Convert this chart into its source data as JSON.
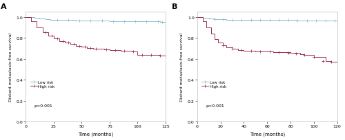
{
  "panel_A": {
    "label": "A",
    "low_risk": {
      "times": [
        0,
        8,
        12,
        18,
        22,
        28,
        35,
        45,
        55,
        65,
        75,
        85,
        95,
        105,
        115,
        120,
        125
      ],
      "surv": [
        1.0,
        0.99,
        0.985,
        0.978,
        0.974,
        0.972,
        0.97,
        0.968,
        0.966,
        0.964,
        0.962,
        0.96,
        0.959,
        0.958,
        0.957,
        0.956,
        0.955
      ],
      "color": "#8bbccc",
      "censor_times": [
        28,
        38,
        48,
        58,
        68,
        78,
        88,
        98,
        108,
        118,
        122
      ],
      "censor_surv": [
        0.972,
        0.97,
        0.968,
        0.966,
        0.964,
        0.962,
        0.96,
        0.959,
        0.958,
        0.957,
        0.956
      ]
    },
    "high_risk": {
      "times": [
        0,
        5,
        10,
        15,
        20,
        25,
        30,
        35,
        40,
        45,
        50,
        55,
        60,
        65,
        70,
        75,
        80,
        85,
        90,
        95,
        100,
        105,
        110,
        115,
        120,
        125
      ],
      "surv": [
        1.0,
        0.96,
        0.9,
        0.855,
        0.82,
        0.795,
        0.77,
        0.755,
        0.74,
        0.725,
        0.715,
        0.705,
        0.7,
        0.695,
        0.69,
        0.685,
        0.682,
        0.678,
        0.675,
        0.672,
        0.64,
        0.638,
        0.636,
        0.635,
        0.634,
        0.633
      ],
      "color": "#9b3050",
      "censor_times": [
        18,
        23,
        28,
        33,
        38,
        43,
        48,
        53,
        58,
        63,
        72,
        80,
        88,
        96,
        104,
        112,
        120
      ],
      "censor_surv": [
        0.855,
        0.82,
        0.795,
        0.77,
        0.755,
        0.74,
        0.725,
        0.715,
        0.705,
        0.7,
        0.688,
        0.682,
        0.676,
        0.672,
        0.638,
        0.635,
        0.634
      ]
    },
    "xlabel": "Time (months)",
    "ylabel": "Distant metastasis-free survival",
    "xlim": [
      0,
      125
    ],
    "ylim": [
      0.0,
      1.05
    ],
    "xticks": [
      0,
      25,
      50,
      75,
      100,
      125
    ],
    "yticks": [
      0.0,
      0.2,
      0.4,
      0.6,
      0.8,
      1.0
    ],
    "pvalue": "p<0.001"
  },
  "panel_B": {
    "label": "B",
    "low_risk": {
      "times": [
        0,
        5,
        10,
        15,
        20,
        25,
        30,
        35,
        40,
        45,
        55,
        65,
        75,
        85,
        95,
        105,
        115,
        120
      ],
      "surv": [
        1.0,
        0.99,
        0.985,
        0.982,
        0.978,
        0.975,
        0.974,
        0.973,
        0.972,
        0.972,
        0.971,
        0.97,
        0.97,
        0.969,
        0.969,
        0.968,
        0.967,
        0.967
      ],
      "color": "#8bbccc",
      "censor_times": [
        15,
        22,
        30,
        38,
        46,
        54,
        62,
        70,
        78,
        86,
        94,
        102,
        110,
        118
      ],
      "censor_surv": [
        0.982,
        0.978,
        0.974,
        0.973,
        0.972,
        0.971,
        0.97,
        0.97,
        0.97,
        0.969,
        0.969,
        0.968,
        0.967,
        0.967
      ]
    },
    "high_risk": {
      "times": [
        0,
        5,
        8,
        12,
        15,
        18,
        22,
        25,
        30,
        35,
        40,
        45,
        50,
        55,
        60,
        65,
        70,
        75,
        80,
        85,
        88,
        92,
        95,
        100,
        105,
        110,
        115,
        120
      ],
      "surv": [
        1.0,
        0.96,
        0.9,
        0.84,
        0.79,
        0.755,
        0.73,
        0.71,
        0.695,
        0.685,
        0.68,
        0.675,
        0.673,
        0.671,
        0.669,
        0.667,
        0.665,
        0.663,
        0.66,
        0.655,
        0.645,
        0.64,
        0.635,
        0.62,
        0.615,
        0.58,
        0.575,
        0.572
      ],
      "color": "#9b3050",
      "censor_times": [
        22,
        30,
        38,
        46,
        54,
        62,
        70,
        78,
        85,
        92,
        100,
        108,
        115
      ],
      "censor_surv": [
        0.73,
        0.695,
        0.685,
        0.68,
        0.673,
        0.669,
        0.665,
        0.66,
        0.648,
        0.638,
        0.618,
        0.577,
        0.574
      ]
    },
    "xlabel": "Time (months)",
    "ylabel": "Distant metastasis-free survival",
    "xlim": [
      0,
      120
    ],
    "ylim": [
      0.0,
      1.05
    ],
    "xticks": [
      0,
      20,
      40,
      60,
      80,
      100,
      120
    ],
    "yticks": [
      0.0,
      0.2,
      0.4,
      0.6,
      0.8,
      1.0
    ],
    "pvalue": "p<0.001"
  },
  "legend_low": "Low risk",
  "legend_high": "High risk",
  "bg_color": "#ffffff",
  "plot_bg": "#ffffff"
}
